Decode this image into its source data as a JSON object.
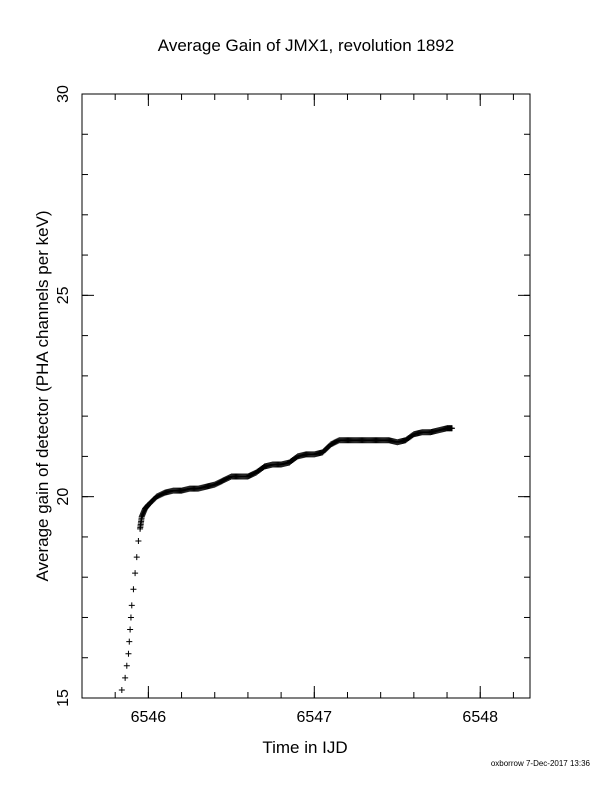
{
  "chart_data": {
    "type": "scatter",
    "title": "Average Gain of JMX1, revolution 1892",
    "xlabel": "Time in IJD",
    "ylabel": "Average gain of detector (PHA channels per keV)",
    "xlim": [
      6545.6,
      6548.3
    ],
    "ylim": [
      15,
      30
    ],
    "x_ticks": [
      "6546",
      "6547",
      "6548"
    ],
    "y_ticks": [
      "15",
      "20",
      "25",
      "30"
    ],
    "x_minor_step": 0.2,
    "y_minor_step": 1,
    "grid": false,
    "marker": "plus",
    "color": "#000000",
    "series": [
      {
        "x": [
          6545.84,
          6545.86,
          6545.87,
          6545.88,
          6545.885,
          6545.89,
          6545.895,
          6545.9,
          6545.91,
          6545.92,
          6545.93,
          6545.94,
          6545.95,
          6545.96,
          6545.98,
          6546.0,
          6546.05,
          6546.1,
          6546.15,
          6546.2,
          6546.25,
          6546.3,
          6546.35,
          6546.4,
          6546.45,
          6546.5,
          6546.55,
          6546.6,
          6546.65,
          6546.7,
          6546.75,
          6546.8,
          6546.85,
          6546.9,
          6546.95,
          6547.0,
          6547.05,
          6547.1,
          6547.15,
          6547.2,
          6547.25,
          6547.3,
          6547.35,
          6547.4,
          6547.45,
          6547.5,
          6547.55,
          6547.6,
          6547.65,
          6547.7,
          6547.75,
          6547.8,
          6547.83
        ],
        "y": [
          15.2,
          15.5,
          15.8,
          16.1,
          16.4,
          16.7,
          17.0,
          17.3,
          17.7,
          18.1,
          18.5,
          18.9,
          19.2,
          19.5,
          19.7,
          19.8,
          20.0,
          20.1,
          20.15,
          20.15,
          20.2,
          20.2,
          20.25,
          20.3,
          20.4,
          20.5,
          20.5,
          20.5,
          20.6,
          20.75,
          20.8,
          20.8,
          20.85,
          21.0,
          21.05,
          21.05,
          21.1,
          21.3,
          21.4,
          21.4,
          21.4,
          21.4,
          21.4,
          21.4,
          21.4,
          21.35,
          21.4,
          21.55,
          21.6,
          21.6,
          21.65,
          21.7,
          21.7
        ]
      }
    ]
  },
  "footer": {
    "stamp": "oxborrow  7-Dec-2017 13:36"
  }
}
